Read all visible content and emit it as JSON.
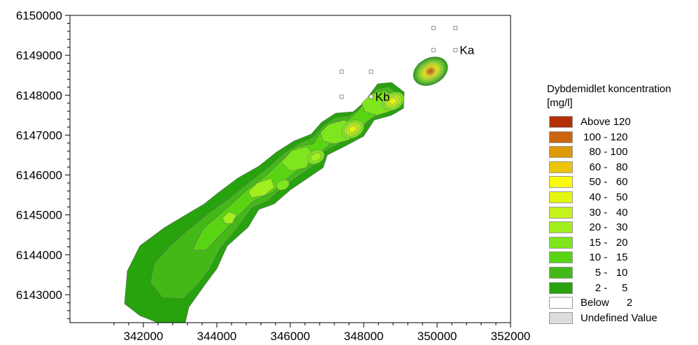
{
  "chart_data": {
    "type": "heatmap",
    "title": "",
    "xlabel": "",
    "ylabel": "",
    "xlim": [
      340000,
      352000
    ],
    "ylim": [
      6142300,
      6150000
    ],
    "x_ticks": [
      "342000",
      "344000",
      "346000",
      "348000",
      "350000",
      "352000"
    ],
    "y_ticks": [
      "6150000",
      "6149000",
      "6148000",
      "6147000",
      "6146000",
      "6145000",
      "6144000",
      "6143000"
    ],
    "x_tick_values": [
      342000,
      344000,
      346000,
      348000,
      350000,
      352000
    ],
    "y_tick_values": [
      6150000,
      6149000,
      6148000,
      6147000,
      6146000,
      6145000,
      6144000,
      6143000
    ],
    "legend": {
      "title": "Dybdemidlet koncentration [mg/l]",
      "title_line1": "Dybdemidlet koncentration",
      "title_line2": "[mg/l]",
      "items": [
        {
          "label": "Above 120",
          "color": "#b52f06"
        },
        {
          "label": " 100 - 120",
          "color": "#cc6410"
        },
        {
          "label": "   80 - 100",
          "color": "#dd9a06"
        },
        {
          "label": "   60 -   80",
          "color": "#ecc50a"
        },
        {
          "label": "   50 -   60",
          "color": "#fafa0c"
        },
        {
          "label": "   40 -   50",
          "color": "#e4f711"
        },
        {
          "label": "   30 -   40",
          "color": "#c6f21b"
        },
        {
          "label": "   20 -   30",
          "color": "#a2ee1f"
        },
        {
          "label": "   15 -   20",
          "color": "#7fe51c"
        },
        {
          "label": "   10 -   15",
          "color": "#58d413"
        },
        {
          "label": "     5 -   10",
          "color": "#43b918"
        },
        {
          "label": "     2 -     5",
          "color": "#27a30d"
        },
        {
          "label": "Below      2",
          "color": "#ffffff"
        },
        {
          "label": "Undefined Value",
          "color": "#dcdcdc"
        }
      ]
    },
    "stations": [
      {
        "x": 349900,
        "y": 6149680
      },
      {
        "x": 350500,
        "y": 6149680
      },
      {
        "x": 349900,
        "y": 6149130
      },
      {
        "x": 350500,
        "y": 6149130
      },
      {
        "x": 347400,
        "y": 6148590
      },
      {
        "x": 348200,
        "y": 6148590
      },
      {
        "x": 347400,
        "y": 6147960
      },
      {
        "x": 348200,
        "y": 6147960
      }
    ],
    "station_labels": [
      {
        "text": "Ka",
        "x": 350500,
        "y": 6149130
      },
      {
        "text": "Kb",
        "x": 348200,
        "y": 6147960
      }
    ],
    "hotspots": [
      {
        "x": 349820,
        "y": 6148600,
        "peak": 120
      },
      {
        "x": 348800,
        "y": 6147850,
        "peak": 50
      },
      {
        "x": 347700,
        "y": 6147150,
        "peak": 50
      },
      {
        "x": 346700,
        "y": 6146450,
        "peak": 30
      },
      {
        "x": 345800,
        "y": 6145750,
        "peak": 20
      }
    ],
    "grid": false
  }
}
